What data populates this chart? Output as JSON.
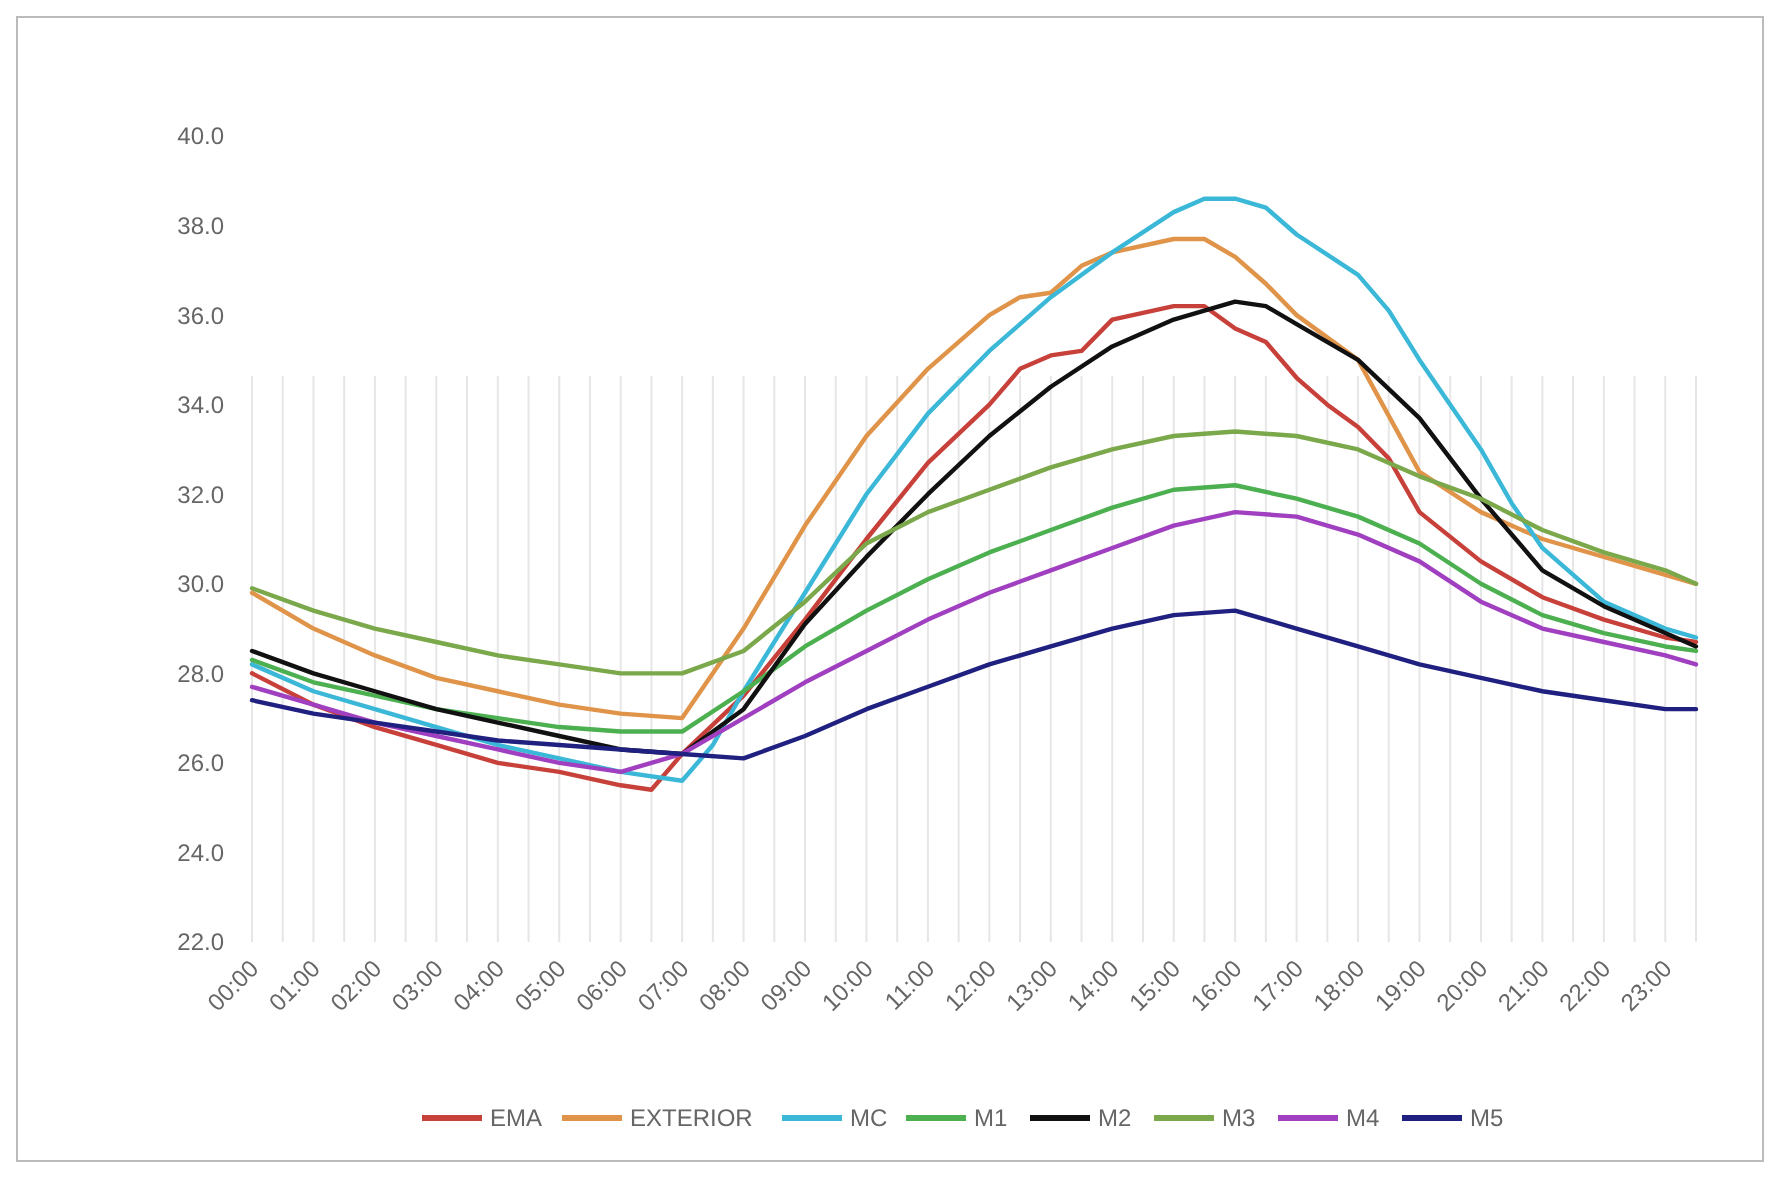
{
  "chart_data": {
    "type": "line",
    "xlim": [
      0,
      23.5
    ],
    "ylim": [
      22,
      40
    ],
    "yticks": [
      {
        "value": 22,
        "label": "22.0"
      },
      {
        "value": 24,
        "label": "24.0"
      },
      {
        "value": 26,
        "label": "26.0"
      },
      {
        "value": 28,
        "label": "28.0"
      },
      {
        "value": 30,
        "label": "30.0"
      },
      {
        "value": 32,
        "label": "32.0"
      },
      {
        "value": 34,
        "label": "34.0"
      },
      {
        "value": 36,
        "label": "36.0"
      },
      {
        "value": 38,
        "label": "38.0"
      },
      {
        "value": 40,
        "label": "40.0"
      }
    ],
    "xticks": [
      {
        "value": 0,
        "label": "00:00"
      },
      {
        "value": 0.5,
        "label": null
      },
      {
        "value": 1,
        "label": "01:00"
      },
      {
        "value": 1.5,
        "label": null
      },
      {
        "value": 2,
        "label": "02:00"
      },
      {
        "value": 2.5,
        "label": null
      },
      {
        "value": 3,
        "label": "03:00"
      },
      {
        "value": 3.5,
        "label": null
      },
      {
        "value": 4,
        "label": "04:00"
      },
      {
        "value": 4.5,
        "label": null
      },
      {
        "value": 5,
        "label": "05:00"
      },
      {
        "value": 5.5,
        "label": null
      },
      {
        "value": 6,
        "label": "06:00"
      },
      {
        "value": 6.5,
        "label": null
      },
      {
        "value": 7,
        "label": "07:00"
      },
      {
        "value": 7.5,
        "label": null
      },
      {
        "value": 8,
        "label": "08:00"
      },
      {
        "value": 8.5,
        "label": null
      },
      {
        "value": 9,
        "label": "09:00"
      },
      {
        "value": 9.5,
        "label": null
      },
      {
        "value": 10,
        "label": "10:00"
      },
      {
        "value": 10.5,
        "label": null
      },
      {
        "value": 11,
        "label": "11:00"
      },
      {
        "value": 11.5,
        "label": null
      },
      {
        "value": 12,
        "label": "12:00"
      },
      {
        "value": 12.5,
        "label": null
      },
      {
        "value": 13,
        "label": "13:00"
      },
      {
        "value": 13.5,
        "label": null
      },
      {
        "value": 14,
        "label": "14:00"
      },
      {
        "value": 14.5,
        "label": null
      },
      {
        "value": 15,
        "label": "15:00"
      },
      {
        "value": 15.5,
        "label": null
      },
      {
        "value": 16,
        "label": "16:00"
      },
      {
        "value": 16.5,
        "label": null
      },
      {
        "value": 17,
        "label": "17:00"
      },
      {
        "value": 17.5,
        "label": null
      },
      {
        "value": 18,
        "label": "18:00"
      },
      {
        "value": 18.5,
        "label": null
      },
      {
        "value": 19,
        "label": "19:00"
      },
      {
        "value": 19.5,
        "label": null
      },
      {
        "value": 20,
        "label": "20:00"
      },
      {
        "value": 20.5,
        "label": null
      },
      {
        "value": 21,
        "label": "21:00"
      },
      {
        "value": 21.5,
        "label": null
      },
      {
        "value": 22,
        "label": "22:00"
      },
      {
        "value": 22.5,
        "label": null
      },
      {
        "value": 23,
        "label": "23:00"
      },
      {
        "value": 23.5,
        "label": null
      }
    ],
    "grid": "x",
    "legend": "bottom",
    "marker": "none",
    "line_style": "solid",
    "series": [
      {
        "name": "EMA",
        "color": "#c8403a",
        "x": [
          0,
          1,
          2,
          3,
          4,
          5,
          6,
          6.5,
          7,
          8,
          9,
          10,
          11,
          12,
          12.5,
          13,
          13.5,
          14,
          15,
          15.5,
          16,
          16.5,
          17,
          17.5,
          18,
          18.5,
          19,
          20,
          21,
          22,
          23,
          23.5
        ],
        "values": [
          28.0,
          27.3,
          26.8,
          26.4,
          26.0,
          25.8,
          25.5,
          25.4,
          26.2,
          27.5,
          29.2,
          31.0,
          32.7,
          34.0,
          34.8,
          35.1,
          35.2,
          35.9,
          36.2,
          36.2,
          35.7,
          35.4,
          34.6,
          34.0,
          33.5,
          32.8,
          31.6,
          30.5,
          29.7,
          29.2,
          28.8,
          28.7
        ]
      },
      {
        "name": "EXTERIOR",
        "color": "#e0944a",
        "x": [
          0,
          1,
          2,
          3,
          4,
          5,
          6,
          7,
          8,
          9,
          10,
          11,
          12,
          12.5,
          13,
          13.5,
          14,
          15,
          15.5,
          16,
          16.5,
          17,
          18,
          19,
          20,
          21,
          22,
          23,
          23.5
        ],
        "values": [
          29.8,
          29.0,
          28.4,
          27.9,
          27.6,
          27.3,
          27.1,
          27.0,
          29.0,
          31.3,
          33.3,
          34.8,
          36.0,
          36.4,
          36.5,
          37.1,
          37.4,
          37.7,
          37.7,
          37.3,
          36.7,
          36.0,
          35.0,
          32.5,
          31.6,
          31.0,
          30.6,
          30.2,
          30.0
        ]
      },
      {
        "name": "MC",
        "color": "#3bb8d8",
        "x": [
          0,
          1,
          2,
          3,
          4,
          5,
          6,
          7,
          7.5,
          8,
          9,
          10,
          11,
          12,
          13,
          14,
          15,
          15.5,
          16,
          16.5,
          17,
          18,
          18.5,
          19,
          20,
          20.5,
          21,
          22,
          23,
          23.5
        ],
        "values": [
          28.2,
          27.6,
          27.2,
          26.8,
          26.4,
          26.1,
          25.8,
          25.6,
          26.4,
          27.6,
          29.8,
          32.0,
          33.8,
          35.2,
          36.4,
          37.4,
          38.3,
          38.6,
          38.6,
          38.4,
          37.8,
          36.9,
          36.1,
          35.0,
          33.0,
          31.8,
          30.8,
          29.6,
          29.0,
          28.8
        ]
      },
      {
        "name": "M1",
        "color": "#4caf50",
        "x": [
          0,
          1,
          2,
          3,
          4,
          5,
          6,
          7,
          8,
          9,
          10,
          11,
          12,
          13,
          14,
          15,
          16,
          17,
          18,
          19,
          20,
          21,
          22,
          23,
          23.5
        ],
        "values": [
          28.3,
          27.8,
          27.5,
          27.2,
          27.0,
          26.8,
          26.7,
          26.7,
          27.6,
          28.6,
          29.4,
          30.1,
          30.7,
          31.2,
          31.7,
          32.1,
          32.2,
          31.9,
          31.5,
          30.9,
          30.0,
          29.3,
          28.9,
          28.6,
          28.5
        ]
      },
      {
        "name": "M2",
        "color": "#111111",
        "x": [
          0,
          1,
          2,
          3,
          4,
          5,
          6,
          7,
          8,
          9,
          10,
          11,
          12,
          13,
          14,
          15,
          16,
          16.5,
          17,
          18,
          19,
          20,
          21,
          22,
          23,
          23.5
        ],
        "values": [
          28.5,
          28.0,
          27.6,
          27.2,
          26.9,
          26.6,
          26.3,
          26.2,
          27.2,
          29.1,
          30.6,
          32.0,
          33.3,
          34.4,
          35.3,
          35.9,
          36.3,
          36.2,
          35.8,
          35.0,
          33.7,
          31.9,
          30.3,
          29.5,
          28.9,
          28.6
        ]
      },
      {
        "name": "M3",
        "color": "#7aa84a",
        "x": [
          0,
          1,
          2,
          3,
          4,
          5,
          6,
          7,
          8,
          9,
          10,
          11,
          12,
          13,
          14,
          15,
          16,
          17,
          18,
          19,
          20,
          21,
          22,
          23,
          23.5
        ],
        "values": [
          29.9,
          29.4,
          29.0,
          28.7,
          28.4,
          28.2,
          28.0,
          28.0,
          28.5,
          29.6,
          30.9,
          31.6,
          32.1,
          32.6,
          33.0,
          33.3,
          33.4,
          33.3,
          33.0,
          32.4,
          31.9,
          31.2,
          30.7,
          30.3,
          30.0
        ]
      },
      {
        "name": "M4",
        "color": "#a040c0",
        "x": [
          0,
          1,
          2,
          3,
          4,
          5,
          6,
          7,
          8,
          9,
          10,
          11,
          12,
          13,
          14,
          15,
          16,
          17,
          18,
          19,
          20,
          21,
          22,
          23,
          23.5
        ],
        "values": [
          27.7,
          27.3,
          26.9,
          26.6,
          26.3,
          26.0,
          25.8,
          26.2,
          27.0,
          27.8,
          28.5,
          29.2,
          29.8,
          30.3,
          30.8,
          31.3,
          31.6,
          31.5,
          31.1,
          30.5,
          29.6,
          29.0,
          28.7,
          28.4,
          28.2
        ]
      },
      {
        "name": "M5",
        "color": "#202080",
        "x": [
          0,
          1,
          2,
          3,
          4,
          5,
          6,
          7,
          8,
          9,
          10,
          11,
          12,
          13,
          14,
          15,
          16,
          17,
          18,
          19,
          20,
          21,
          22,
          23,
          23.5
        ],
        "values": [
          27.4,
          27.1,
          26.9,
          26.7,
          26.5,
          26.4,
          26.3,
          26.2,
          26.1,
          26.6,
          27.2,
          27.7,
          28.2,
          28.6,
          29.0,
          29.3,
          29.4,
          29.0,
          28.6,
          28.2,
          27.9,
          27.6,
          27.4,
          27.2,
          27.2
        ]
      }
    ]
  }
}
